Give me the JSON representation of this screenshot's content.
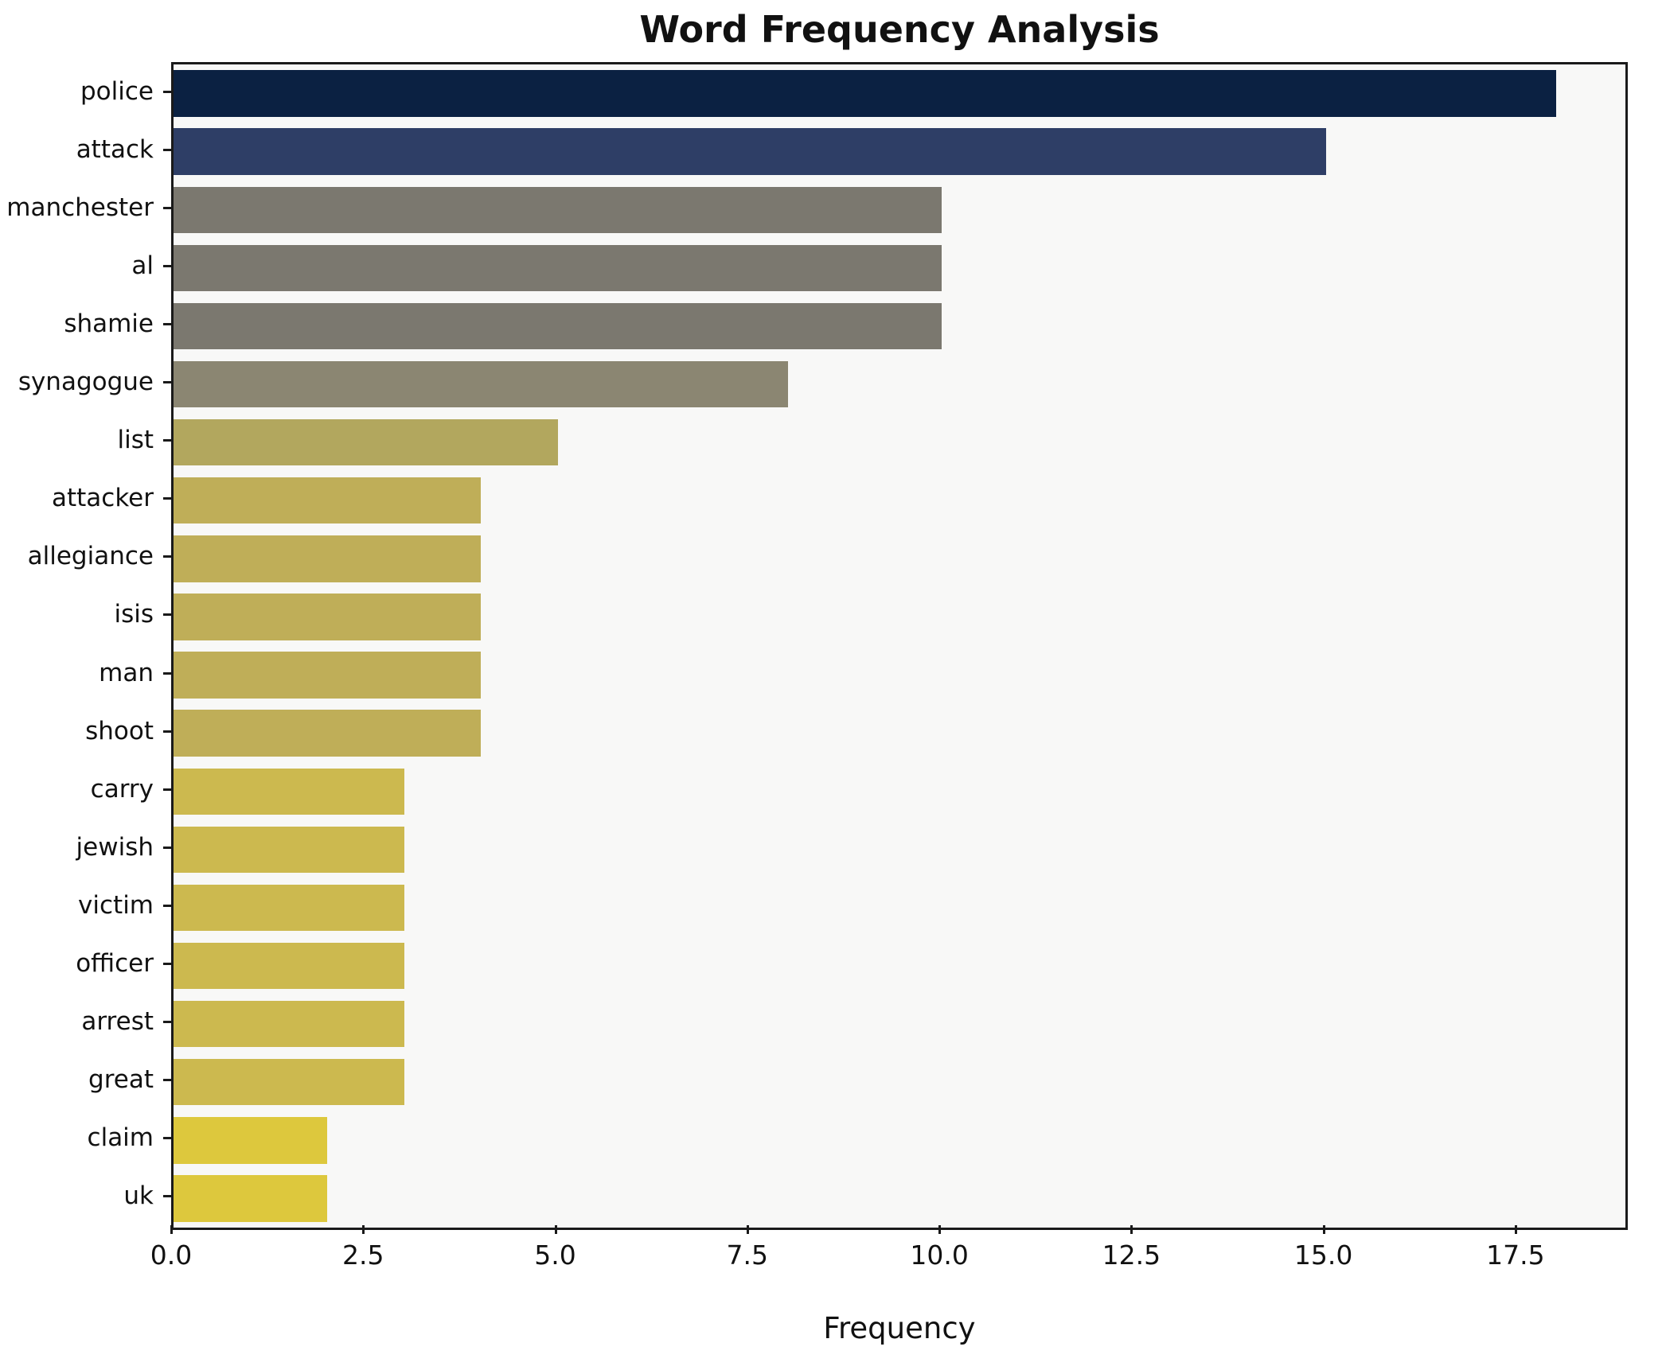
{
  "figure": {
    "kind": "matplotlib-style horizontal bar chart"
  },
  "chart_data": {
    "type": "bar",
    "orientation": "horizontal",
    "title": "Word Frequency Analysis",
    "xlabel": "Frequency",
    "ylabel": "",
    "categories": [
      "police",
      "attack",
      "manchester",
      "al",
      "shamie",
      "synagogue",
      "list",
      "attacker",
      "allegiance",
      "isis",
      "man",
      "shoot",
      "carry",
      "jewish",
      "victim",
      "officer",
      "arrest",
      "great",
      "claim",
      "uk"
    ],
    "values": [
      18,
      15,
      10,
      10,
      10,
      8,
      5,
      4,
      4,
      4,
      4,
      4,
      3,
      3,
      3,
      3,
      3,
      3,
      2,
      2
    ],
    "bar_colors": [
      "#0b2142",
      "#2e3e66",
      "#7b786f",
      "#7b786f",
      "#7b786f",
      "#8b8672",
      "#b2a75e",
      "#bfae58",
      "#bfae58",
      "#bfae58",
      "#bfae58",
      "#bfae58",
      "#ccb94f",
      "#ccb94f",
      "#ccb94f",
      "#ccb94f",
      "#ccb94f",
      "#ccb94f",
      "#ddc83d",
      "#ddc83d"
    ],
    "xlim": [
      0,
      18.9
    ],
    "xticks": [
      0,
      2.5,
      5,
      7.5,
      10,
      12.5,
      15,
      17.5
    ],
    "xtick_labels": [
      "0.0",
      "2.5",
      "5.0",
      "7.5",
      "10.0",
      "12.5",
      "15.0",
      "17.5"
    ],
    "grid": false,
    "legend": "none",
    "plot_background": "#f8f8f7",
    "figure_background": "#ffffff",
    "axis_color": "#1a1a1a"
  }
}
